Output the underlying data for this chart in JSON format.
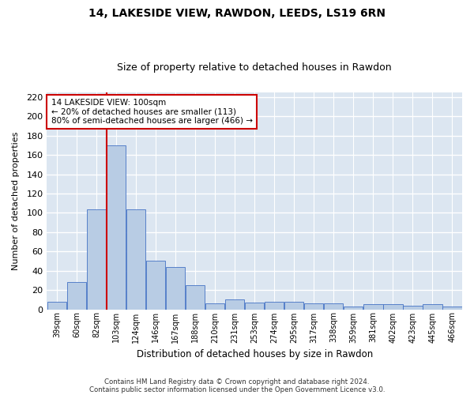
{
  "title1": "14, LAKESIDE VIEW, RAWDON, LEEDS, LS19 6RN",
  "title2": "Size of property relative to detached houses in Rawdon",
  "xlabel": "Distribution of detached houses by size in Rawdon",
  "ylabel": "Number of detached properties",
  "categories": [
    "39sqm",
    "60sqm",
    "82sqm",
    "103sqm",
    "124sqm",
    "146sqm",
    "167sqm",
    "188sqm",
    "210sqm",
    "231sqm",
    "253sqm",
    "274sqm",
    "295sqm",
    "317sqm",
    "338sqm",
    "359sqm",
    "381sqm",
    "402sqm",
    "423sqm",
    "445sqm",
    "466sqm"
  ],
  "values": [
    8,
    28,
    104,
    170,
    104,
    50,
    44,
    25,
    6,
    10,
    7,
    8,
    8,
    6,
    6,
    3,
    5,
    5,
    4,
    5,
    3
  ],
  "bar_color": "#b8cce4",
  "bar_edge_color": "#4472c4",
  "vline_color": "#cc0000",
  "vline_index": 3,
  "annotation_box_text": "14 LAKESIDE VIEW: 100sqm\n← 20% of detached houses are smaller (113)\n80% of semi-detached houses are larger (466) →",
  "annotation_box_color": "#cc0000",
  "annotation_fill": "#ffffff",
  "ylim": [
    0,
    225
  ],
  "yticks": [
    0,
    20,
    40,
    60,
    80,
    100,
    120,
    140,
    160,
    180,
    200,
    220
  ],
  "bg_color": "#dce6f1",
  "grid_color": "#ffffff",
  "footer1": "Contains HM Land Registry data © Crown copyright and database right 2024.",
  "footer2": "Contains public sector information licensed under the Open Government Licence v3.0."
}
